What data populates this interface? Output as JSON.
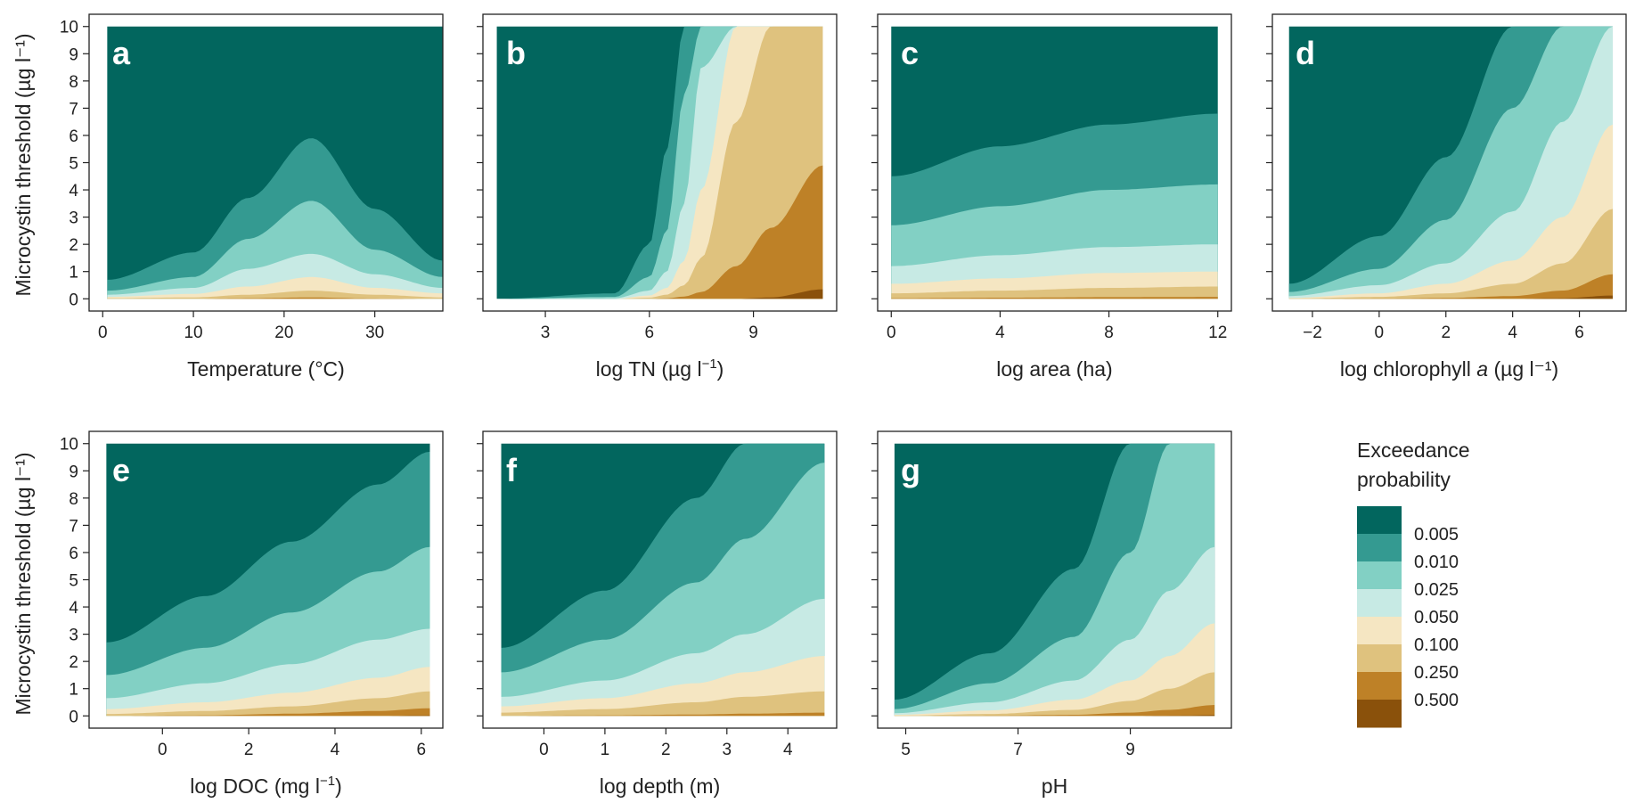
{
  "figure": {
    "y_axis_label": "Microcystin threshold (µg l⁻¹)",
    "colorbar_title_line1": "Exceedance",
    "colorbar_title_line2": "probability"
  },
  "colors": {
    "band_0": "#02665E",
    "band_1": "#349A91",
    "band_2": "#82D0C4",
    "band_3": "#C7EAE4",
    "band_4": "#F5E6C2",
    "band_5": "#DFC27E",
    "band_6": "#BE8127",
    "band_7": "#8A510B"
  },
  "chart_data": [
    {
      "type": "contour",
      "panel": "a",
      "xlabel_pre": "Temperature (°C)",
      "xlabel_sup": "",
      "xlabel_post": "",
      "xlabel_italic": "",
      "xlabel_tail": "",
      "xlim": [
        -1.5,
        37.5
      ],
      "xticks": [
        0,
        10,
        20,
        30
      ],
      "ylim": [
        -0.45,
        10.45
      ],
      "yticks": [
        0,
        1,
        2,
        3,
        4,
        5,
        6,
        7,
        8,
        9,
        10
      ],
      "x_data_range": [
        0.5,
        37.5
      ],
      "y_data_range": [
        0,
        10
      ],
      "boundaries_at_x": [
        {
          "x": 0.5,
          "y": [
            0.7,
            0.3,
            0.15,
            0.07,
            0.02,
            0.0,
            0.0
          ]
        },
        {
          "x": 10,
          "y": [
            1.7,
            0.8,
            0.4,
            0.18,
            0.05,
            0.0,
            0.0
          ]
        },
        {
          "x": 16,
          "y": [
            3.7,
            2.2,
            1.1,
            0.45,
            0.15,
            0.02,
            0.0
          ]
        },
        {
          "x": 23,
          "y": [
            5.9,
            3.6,
            1.65,
            0.8,
            0.3,
            0.05,
            0.0
          ]
        },
        {
          "x": 30,
          "y": [
            3.3,
            1.8,
            0.9,
            0.4,
            0.15,
            0.01,
            0.0
          ]
        },
        {
          "x": 37.5,
          "y": [
            1.4,
            0.8,
            0.4,
            0.2,
            0.05,
            0.0,
            0.0
          ]
        }
      ]
    },
    {
      "type": "contour",
      "panel": "b",
      "xlabel_pre": "log TN (µg l",
      "xlabel_sup": "−1",
      "xlabel_post": ")",
      "xlabel_italic": "",
      "xlabel_tail": "",
      "xlim": [
        1.2,
        11.4
      ],
      "xticks": [
        3,
        6,
        9
      ],
      "ylim": [
        -0.45,
        10.45
      ],
      "yticks": [
        0,
        1,
        2,
        3,
        4,
        5,
        6,
        7,
        8,
        9,
        10
      ],
      "x_data_range": [
        1.6,
        11.0
      ],
      "y_data_range": [
        0,
        10
      ],
      "boundaries_at_x": [
        {
          "x": 1.6,
          "y": [
            0,
            0,
            0,
            0,
            0,
            0,
            0
          ]
        },
        {
          "x": 5.0,
          "y": [
            0.2,
            0.07,
            0.02,
            0.0,
            0.0,
            0.0,
            0.0
          ]
        },
        {
          "x": 6.0,
          "y": [
            2.0,
            0.8,
            0.3,
            0.12,
            0.04,
            0.0,
            0.0
          ]
        },
        {
          "x": 6.5,
          "y": [
            5.5,
            2.5,
            1.0,
            0.4,
            0.15,
            0.02,
            0.0
          ]
        },
        {
          "x": 7.0,
          "y": [
            10,
            7.5,
            3.5,
            1.4,
            0.5,
            0.08,
            0.0
          ]
        },
        {
          "x": 7.5,
          "y": [
            10,
            10,
            8.5,
            4.0,
            1.5,
            0.25,
            0.0
          ]
        },
        {
          "x": 8.5,
          "y": [
            10,
            10,
            10,
            10,
            6.5,
            1.2,
            0.0
          ]
        },
        {
          "x": 9.5,
          "y": [
            10,
            10,
            10,
            10,
            10,
            2.6,
            0.05
          ]
        },
        {
          "x": 11.0,
          "y": [
            10,
            10,
            10,
            10,
            10,
            4.9,
            0.35
          ]
        }
      ]
    },
    {
      "type": "contour",
      "panel": "c",
      "xlabel_pre": "log area (ha)",
      "xlabel_sup": "",
      "xlabel_post": "",
      "xlabel_italic": "",
      "xlabel_tail": "",
      "xlim": [
        -0.5,
        12.5
      ],
      "xticks": [
        0,
        4,
        8,
        12
      ],
      "ylim": [
        -0.45,
        10.45
      ],
      "yticks": [
        0,
        1,
        2,
        3,
        4,
        5,
        6,
        7,
        8,
        9,
        10
      ],
      "x_data_range": [
        0,
        12
      ],
      "y_data_range": [
        0,
        10
      ],
      "boundaries_at_x": [
        {
          "x": 0,
          "y": [
            4.5,
            2.7,
            1.2,
            0.55,
            0.2,
            0.02,
            0.0
          ]
        },
        {
          "x": 4,
          "y": [
            5.6,
            3.4,
            1.6,
            0.75,
            0.3,
            0.04,
            0.0
          ]
        },
        {
          "x": 8,
          "y": [
            6.4,
            4.0,
            1.9,
            0.95,
            0.4,
            0.06,
            0.0
          ]
        },
        {
          "x": 12,
          "y": [
            6.8,
            4.2,
            2.0,
            1.0,
            0.45,
            0.07,
            0.0
          ]
        }
      ]
    },
    {
      "type": "contour",
      "panel": "d",
      "xlabel_pre": "log chlorophyll ",
      "xlabel_sup": "",
      "xlabel_post": "",
      "xlabel_italic": "a",
      "xlabel_tail": " (µg l⁻¹)",
      "xlim": [
        -3.2,
        7.4
      ],
      "xticks": [
        -2,
        0,
        2,
        4,
        6
      ],
      "ylim": [
        -0.45,
        10.45
      ],
      "yticks": [
        0,
        1,
        2,
        3,
        4,
        5,
        6,
        7,
        8,
        9,
        10
      ],
      "x_data_range": [
        -2.7,
        7.0
      ],
      "y_data_range": [
        0,
        10
      ],
      "boundaries_at_x": [
        {
          "x": -2.7,
          "y": [
            0.55,
            0.25,
            0.1,
            0.03,
            0.01,
            0.0,
            0.0
          ]
        },
        {
          "x": 0,
          "y": [
            2.3,
            1.1,
            0.5,
            0.2,
            0.07,
            0.01,
            0.0
          ]
        },
        {
          "x": 2,
          "y": [
            5.2,
            2.9,
            1.3,
            0.55,
            0.2,
            0.03,
            0.0
          ]
        },
        {
          "x": 4,
          "y": [
            10,
            7.0,
            3.2,
            1.4,
            0.55,
            0.1,
            0.0
          ]
        },
        {
          "x": 5.5,
          "y": [
            10,
            10,
            6.5,
            3.0,
            1.3,
            0.3,
            0.02
          ]
        },
        {
          "x": 7.0,
          "y": [
            10,
            10,
            10,
            6.4,
            3.3,
            0.9,
            0.12
          ]
        }
      ]
    },
    {
      "type": "contour",
      "panel": "e",
      "xlabel_pre": "log DOC (mg l",
      "xlabel_sup": "−1",
      "xlabel_post": ")",
      "xlabel_italic": "",
      "xlabel_tail": "",
      "xlim": [
        -1.7,
        6.5
      ],
      "xticks": [
        0,
        2,
        4,
        6
      ],
      "ylim": [
        -0.45,
        10.45
      ],
      "yticks": [
        0,
        1,
        2,
        3,
        4,
        5,
        6,
        7,
        8,
        9,
        10
      ],
      "x_data_range": [
        -1.3,
        6.2
      ],
      "y_data_range": [
        0,
        10
      ],
      "boundaries_at_x": [
        {
          "x": -1.3,
          "y": [
            2.7,
            1.5,
            0.65,
            0.25,
            0.07,
            0.0,
            0.0
          ]
        },
        {
          "x": 1,
          "y": [
            4.4,
            2.5,
            1.2,
            0.5,
            0.18,
            0.02,
            0.0
          ]
        },
        {
          "x": 3,
          "y": [
            6.4,
            3.8,
            1.9,
            0.85,
            0.35,
            0.08,
            0.0
          ]
        },
        {
          "x": 5,
          "y": [
            8.5,
            5.3,
            2.8,
            1.4,
            0.65,
            0.18,
            0.0
          ]
        },
        {
          "x": 6.2,
          "y": [
            9.7,
            6.2,
            3.2,
            1.8,
            0.9,
            0.28,
            0.02
          ]
        }
      ]
    },
    {
      "type": "contour",
      "panel": "f",
      "xlabel_pre": "log depth (m)",
      "xlabel_sup": "",
      "xlabel_post": "",
      "xlabel_italic": "",
      "xlabel_tail": "",
      "xlim": [
        -1.0,
        4.8
      ],
      "xticks": [
        0,
        1,
        2,
        3,
        4
      ],
      "ylim": [
        -0.45,
        10.45
      ],
      "yticks": [
        0,
        1,
        2,
        3,
        4,
        5,
        6,
        7,
        8,
        9,
        10
      ],
      "x_data_range": [
        -0.7,
        4.6
      ],
      "y_data_range": [
        0,
        10
      ],
      "boundaries_at_x": [
        {
          "x": -0.7,
          "y": [
            2.5,
            1.6,
            0.7,
            0.35,
            0.12,
            0.0,
            0.0
          ]
        },
        {
          "x": 1,
          "y": [
            4.6,
            2.8,
            1.3,
            0.65,
            0.25,
            0.02,
            0.0
          ]
        },
        {
          "x": 2.5,
          "y": [
            8.0,
            4.9,
            2.3,
            1.2,
            0.5,
            0.05,
            0.0
          ]
        },
        {
          "x": 3.3,
          "y": [
            10,
            6.5,
            3.0,
            1.6,
            0.7,
            0.08,
            0.0
          ]
        },
        {
          "x": 4.6,
          "y": [
            10,
            9.3,
            4.3,
            2.2,
            0.9,
            0.12,
            0.0
          ]
        }
      ]
    },
    {
      "type": "contour",
      "panel": "g",
      "xlabel_pre": "pH",
      "xlabel_sup": "",
      "xlabel_post": "",
      "xlabel_italic": "",
      "xlabel_tail": "",
      "xlim": [
        4.5,
        10.8
      ],
      "xticks": [
        5,
        7,
        9
      ],
      "ylim": [
        -0.45,
        10.45
      ],
      "yticks": [
        0,
        1,
        2,
        3,
        4,
        5,
        6,
        7,
        8,
        9,
        10
      ],
      "x_data_range": [
        4.8,
        10.5
      ],
      "y_data_range": [
        0,
        10
      ],
      "boundaries_at_x": [
        {
          "x": 4.8,
          "y": [
            0.6,
            0.25,
            0.1,
            0.04,
            0.01,
            0.0,
            0.0
          ]
        },
        {
          "x": 6.5,
          "y": [
            2.3,
            1.2,
            0.5,
            0.2,
            0.07,
            0.01,
            0.0
          ]
        },
        {
          "x": 8,
          "y": [
            5.4,
            2.9,
            1.3,
            0.6,
            0.22,
            0.04,
            0.0
          ]
        },
        {
          "x": 9.0,
          "y": [
            10,
            6.0,
            2.8,
            1.3,
            0.55,
            0.12,
            0.0
          ]
        },
        {
          "x": 9.7,
          "y": [
            10,
            10,
            4.6,
            2.2,
            1.0,
            0.22,
            0.01
          ]
        },
        {
          "x": 10.5,
          "y": [
            10,
            10,
            6.2,
            3.4,
            1.6,
            0.4,
            0.03
          ]
        }
      ]
    }
  ],
  "colorbar": {
    "labels": [
      "0.005",
      "0.010",
      "0.025",
      "0.050",
      "0.100",
      "0.250",
      "0.500"
    ]
  }
}
